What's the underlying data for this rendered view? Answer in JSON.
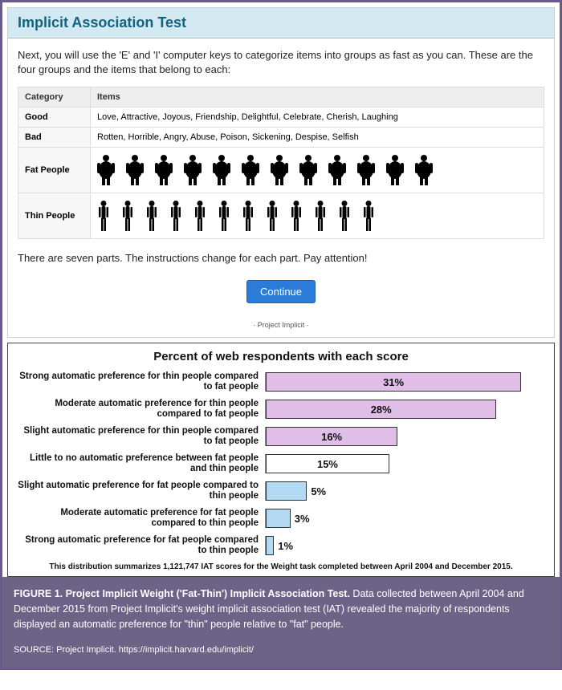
{
  "iat": {
    "title": "Implicit Association Test",
    "intro": "Next, you will use the 'E' and 'I' computer keys to categorize items into groups as fast as you can. These are the four groups and the items that belong to each:",
    "table": {
      "headers": {
        "category": "Category",
        "items": "Items"
      },
      "rows": [
        {
          "category": "Good",
          "items": "Love, Attractive, Joyous, Friendship, Delightful, Celebrate, Cherish, Laughing"
        },
        {
          "category": "Bad",
          "items": "Rotten, Horrible, Angry, Abuse, Poison, Sickening, Despise, Selfish"
        },
        {
          "category": "Fat People",
          "items": "",
          "silhouette": "fat",
          "count": 12
        },
        {
          "category": "Thin People",
          "items": "",
          "silhouette": "thin",
          "count": 12
        }
      ]
    },
    "parts_note": "There are seven parts. The instructions change for each part. Pay attention!",
    "continue_label": "Continue",
    "footer": "· Project Implicit ·"
  },
  "chart": {
    "type": "horizontal-bar",
    "title": "Percent of web respondents with each score",
    "xlim": [
      0,
      34
    ],
    "background_color": "#ffffff",
    "border_color": "#333333",
    "bars": [
      {
        "label": "Strong automatic preference for thin people compared to fat people",
        "value": 31,
        "fill": "#e1bee7",
        "value_inside": true
      },
      {
        "label": "Moderate automatic preference for thin people compared to fat people",
        "value": 28,
        "fill": "#e1bee7",
        "value_inside": true
      },
      {
        "label": "Slight automatic preference for thin people compared to fat people",
        "value": 16,
        "fill": "#e1bee7",
        "value_inside": true
      },
      {
        "label": "Little to no automatic preference between fat people and thin people",
        "value": 15,
        "fill": "#ffffff",
        "value_inside": true
      },
      {
        "label": "Slight automatic preference for fat people compared to thin people",
        "value": 5,
        "fill": "#b3d9f2",
        "value_inside": false
      },
      {
        "label": "Moderate automatic preference for fat people compared to thin people",
        "value": 3,
        "fill": "#b3d9f2",
        "value_inside": false
      },
      {
        "label": "Strong automatic preference for fat people compared to thin people",
        "value": 1,
        "fill": "#b3d9f2",
        "value_inside": false
      }
    ],
    "footnote": "This distribution summarizes 1,121,747 IAT scores for the Weight task completed between April 2004 and December 2015."
  },
  "caption": {
    "figure_label": "FIGURE 1. Project Implicit Weight ('Fat-Thin') Implicit Association Test.",
    "body": " Data collected between April 2004 and December 2015 from Project Implicit's weight implicit association test (IAT) revealed the majority of respondents displayed an automatic preference for \"thin\" people relative to \"fat\" people.",
    "source": "SOURCE: Project Implicit. https://implicit.harvard.edu/implicit/",
    "background_color": "#6c6387",
    "text_color": "#ffffff"
  }
}
